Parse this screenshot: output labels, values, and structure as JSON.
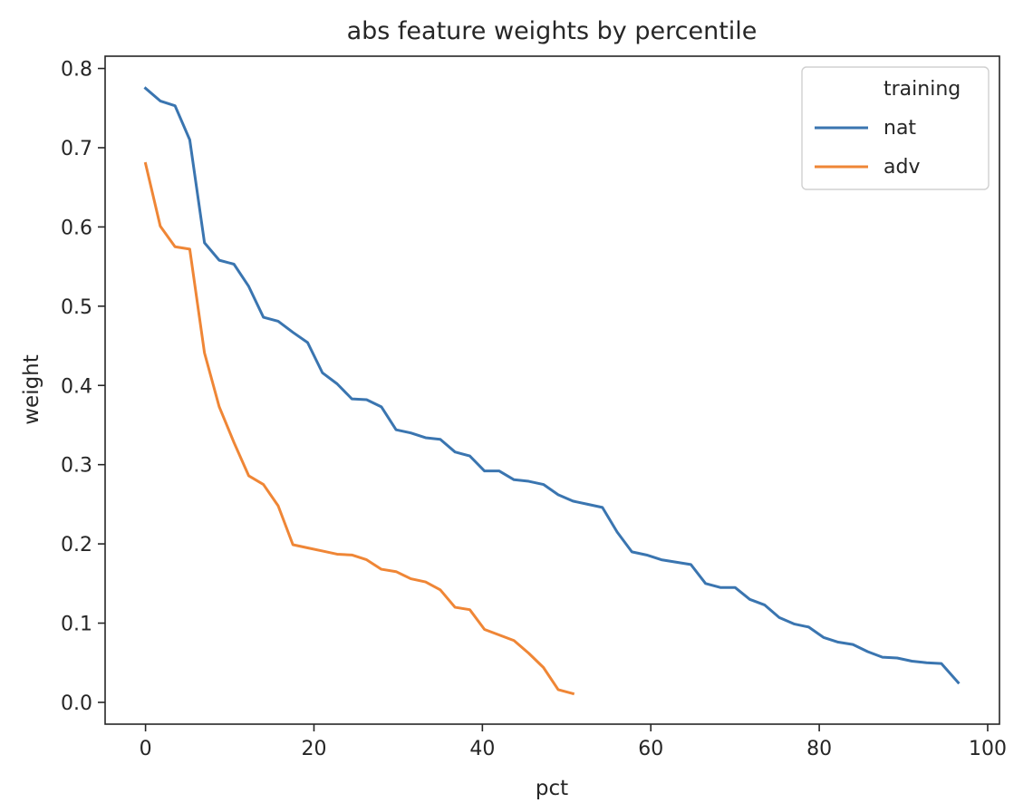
{
  "chart_data": {
    "type": "line",
    "title": "abs feature weights by percentile",
    "xlabel": "pct",
    "ylabel": "weight",
    "xlim": [
      -4.8,
      101.4
    ],
    "ylim": [
      -0.0275,
      0.8155
    ],
    "xticks": [
      0,
      20,
      40,
      60,
      80,
      100
    ],
    "xtick_labels": [
      "0",
      "20",
      "40",
      "60",
      "80",
      "100"
    ],
    "yticks": [
      0.0,
      0.1,
      0.2,
      0.3,
      0.4,
      0.5,
      0.6,
      0.7,
      0.8
    ],
    "ytick_labels": [
      "0.0",
      "0.1",
      "0.2",
      "0.3",
      "0.4",
      "0.5",
      "0.6",
      "0.7",
      "0.8"
    ],
    "grid": false,
    "legend": {
      "title": "training",
      "placement": "top-right"
    },
    "series": [
      {
        "name": "nat",
        "color": "#3a75b0",
        "x": [
          0,
          1.75,
          3.5,
          5.25,
          7.0,
          8.75,
          10.5,
          12.25,
          14.0,
          15.75,
          17.5,
          19.25,
          21.0,
          22.75,
          24.5,
          26.25,
          28.0,
          29.75,
          31.5,
          33.25,
          35.0,
          36.75,
          38.5,
          40.25,
          42.0,
          43.75,
          45.5,
          47.25,
          49.0,
          50.75,
          52.5,
          54.25,
          56.0,
          57.75,
          59.5,
          61.25,
          63.0,
          64.75,
          66.5,
          68.25,
          70.0,
          71.75,
          73.5,
          75.25,
          77.0,
          78.75,
          80.5,
          82.25,
          84.0,
          85.75,
          87.5,
          89.25,
          91.0,
          92.75,
          94.5,
          96.5
        ],
        "y": [
          0.775,
          0.759,
          0.753,
          0.71,
          0.58,
          0.558,
          0.553,
          0.525,
          0.486,
          0.481,
          0.467,
          0.454,
          0.416,
          0.402,
          0.383,
          0.382,
          0.373,
          0.344,
          0.34,
          0.334,
          0.332,
          0.316,
          0.311,
          0.292,
          0.292,
          0.281,
          0.279,
          0.275,
          0.262,
          0.254,
          0.25,
          0.246,
          0.215,
          0.19,
          0.186,
          0.18,
          0.177,
          0.174,
          0.15,
          0.145,
          0.145,
          0.13,
          0.123,
          0.107,
          0.099,
          0.095,
          0.082,
          0.076,
          0.073,
          0.064,
          0.057,
          0.056,
          0.052,
          0.05,
          0.049,
          0.025
        ]
      },
      {
        "name": "adv",
        "color": "#ef8636",
        "x": [
          0,
          1.75,
          3.5,
          5.25,
          7.0,
          8.75,
          10.5,
          12.25,
          14.0,
          15.75,
          17.5,
          19.25,
          21.0,
          22.75,
          24.5,
          26.25,
          28.0,
          29.75,
          31.5,
          33.25,
          35.0,
          36.75,
          38.5,
          40.25,
          42.0,
          43.75,
          45.5,
          47.25,
          49.0,
          50.75
        ],
        "y": [
          0.68,
          0.601,
          0.575,
          0.572,
          0.441,
          0.373,
          0.328,
          0.286,
          0.275,
          0.248,
          0.199,
          0.195,
          0.191,
          0.187,
          0.186,
          0.18,
          0.168,
          0.165,
          0.156,
          0.152,
          0.142,
          0.12,
          0.117,
          0.092,
          0.085,
          0.078,
          0.062,
          0.044,
          0.016,
          0.011
        ]
      }
    ]
  }
}
